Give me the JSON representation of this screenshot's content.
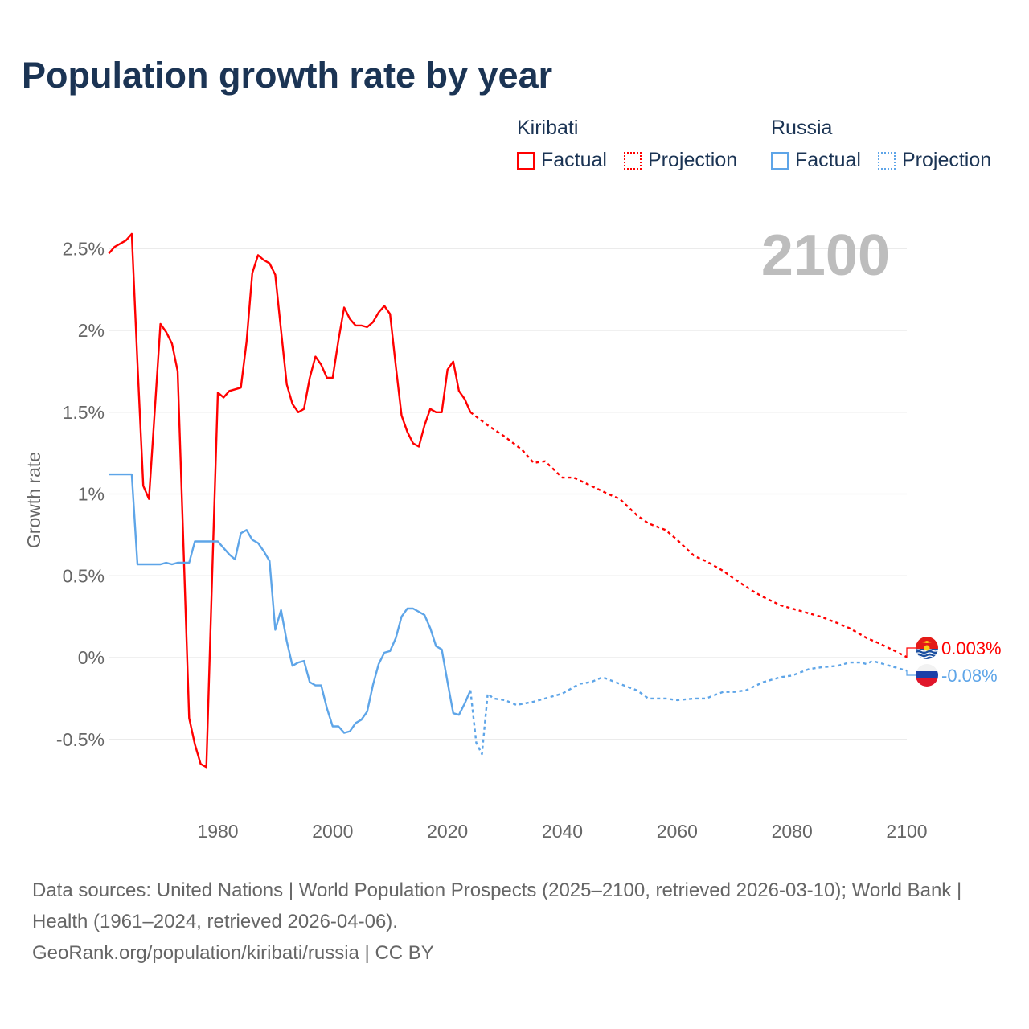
{
  "title": "Population growth rate by year",
  "legend": {
    "groups": [
      {
        "country": "Kiribati",
        "color": "#ff0000",
        "factual_label": "Factual",
        "projection_label": "Projection"
      },
      {
        "country": "Russia",
        "color": "#5ea5e8",
        "factual_label": "Factual",
        "projection_label": "Projection"
      }
    ]
  },
  "year_display": "2100",
  "footer": {
    "sources": "Data sources: United Nations | World Population Prospects (2025–2100, retrieved 2026-03-10); World Bank | Health (1961–2024, retrieved 2026-04-06).",
    "credit": "GeoRank.org/population/kiribati/russia | CC BY"
  },
  "chart_data": {
    "type": "line",
    "title": "Population growth rate by year",
    "xlabel": "",
    "ylabel": "Growth rate",
    "xlim": [
      1961,
      2100
    ],
    "ylim": [
      -0.85,
      2.75
    ],
    "x_ticks": [
      1980,
      2000,
      2020,
      2040,
      2060,
      2080,
      2100
    ],
    "y_ticks": [
      -0.5,
      0,
      0.5,
      1,
      1.5,
      2,
      2.5
    ],
    "y_tick_labels": [
      "-0.5%",
      "0%",
      "0.5%",
      "1%",
      "1.5%",
      "2%",
      "2.5%"
    ],
    "grid": true,
    "legend_position": "top-right",
    "series": [
      {
        "name": "Kiribati Factual",
        "color": "#ff0000",
        "dash": false,
        "x": [
          1961,
          1962,
          1963,
          1964,
          1965,
          1966,
          1967,
          1968,
          1969,
          1970,
          1971,
          1972,
          1973,
          1974,
          1975,
          1976,
          1977,
          1978,
          1979,
          1980,
          1981,
          1982,
          1983,
          1984,
          1985,
          1986,
          1987,
          1988,
          1989,
          1990,
          1991,
          1992,
          1993,
          1994,
          1995,
          1996,
          1997,
          1998,
          1999,
          2000,
          2001,
          2002,
          2003,
          2004,
          2005,
          2006,
          2007,
          2008,
          2009,
          2010,
          2011,
          2012,
          2013,
          2014,
          2015,
          2016,
          2017,
          2018,
          2019,
          2020,
          2021,
          2022,
          2023,
          2024
        ],
        "y": [
          2.47,
          2.51,
          2.53,
          2.55,
          2.59,
          1.8,
          1.05,
          0.97,
          1.5,
          2.04,
          1.99,
          1.92,
          1.75,
          0.7,
          -0.37,
          -0.53,
          -0.65,
          -0.67,
          0.5,
          1.62,
          1.59,
          1.63,
          1.64,
          1.65,
          1.93,
          2.35,
          2.46,
          2.43,
          2.41,
          2.34,
          2.0,
          1.67,
          1.55,
          1.5,
          1.52,
          1.71,
          1.84,
          1.79,
          1.71,
          1.71,
          1.94,
          2.14,
          2.07,
          2.03,
          2.03,
          2.02,
          2.05,
          2.11,
          2.15,
          2.1,
          1.78,
          1.48,
          1.38,
          1.31,
          1.29,
          1.42,
          1.52,
          1.5,
          1.5,
          1.76,
          1.81,
          1.63,
          1.58,
          1.5
        ]
      },
      {
        "name": "Kiribati Projection",
        "color": "#ff0000",
        "dash": true,
        "x": [
          2024,
          2027,
          2030,
          2033,
          2035,
          2037,
          2040,
          2042,
          2045,
          2048,
          2050,
          2053,
          2055,
          2058,
          2060,
          2063,
          2065,
          2068,
          2070,
          2073,
          2075,
          2078,
          2080,
          2083,
          2085,
          2088,
          2090,
          2093,
          2095,
          2098,
          2100
        ],
        "y": [
          1.5,
          1.42,
          1.35,
          1.27,
          1.19,
          1.2,
          1.1,
          1.1,
          1.05,
          1.0,
          0.97,
          0.87,
          0.82,
          0.78,
          0.72,
          0.62,
          0.59,
          0.53,
          0.48,
          0.41,
          0.37,
          0.32,
          0.3,
          0.27,
          0.25,
          0.21,
          0.18,
          0.12,
          0.09,
          0.04,
          0.003
        ]
      },
      {
        "name": "Russia Factual",
        "color": "#5ea5e8",
        "dash": false,
        "x": [
          1961,
          1962,
          1963,
          1964,
          1965,
          1966,
          1967,
          1968,
          1969,
          1970,
          1971,
          1972,
          1973,
          1974,
          1975,
          1976,
          1977,
          1978,
          1979,
          1980,
          1981,
          1982,
          1983,
          1984,
          1985,
          1986,
          1987,
          1988,
          1989,
          1990,
          1991,
          1992,
          1993,
          1994,
          1995,
          1996,
          1997,
          1998,
          1999,
          2000,
          2001,
          2002,
          2003,
          2004,
          2005,
          2006,
          2007,
          2008,
          2009,
          2010,
          2011,
          2012,
          2013,
          2014,
          2015,
          2016,
          2017,
          2018,
          2019,
          2020,
          2021,
          2022,
          2023,
          2024
        ],
        "y": [
          1.12,
          1.12,
          1.12,
          1.12,
          1.12,
          0.57,
          0.57,
          0.57,
          0.57,
          0.57,
          0.58,
          0.57,
          0.58,
          0.58,
          0.58,
          0.71,
          0.71,
          0.71,
          0.71,
          0.71,
          0.67,
          0.63,
          0.6,
          0.76,
          0.78,
          0.72,
          0.7,
          0.65,
          0.59,
          0.17,
          0.29,
          0.1,
          -0.05,
          -0.03,
          -0.02,
          -0.15,
          -0.17,
          -0.17,
          -0.31,
          -0.42,
          -0.42,
          -0.46,
          -0.45,
          -0.4,
          -0.38,
          -0.33,
          -0.17,
          -0.04,
          0.03,
          0.04,
          0.12,
          0.25,
          0.3,
          0.3,
          0.28,
          0.26,
          0.18,
          0.07,
          0.05,
          -0.15,
          -0.34,
          -0.35,
          -0.28,
          -0.2
        ]
      },
      {
        "name": "Russia Projection",
        "color": "#5ea5e8",
        "dash": true,
        "x": [
          2024,
          2025,
          2026,
          2027,
          2028,
          2030,
          2032,
          2035,
          2040,
          2043,
          2045,
          2047,
          2050,
          2053,
          2055,
          2058,
          2060,
          2063,
          2065,
          2068,
          2070,
          2072,
          2075,
          2078,
          2080,
          2083,
          2085,
          2088,
          2090,
          2092,
          2093,
          2094,
          2096,
          2098,
          2100
        ],
        "y": [
          -0.2,
          -0.52,
          -0.59,
          -0.22,
          -0.25,
          -0.26,
          -0.29,
          -0.27,
          -0.22,
          -0.16,
          -0.15,
          -0.12,
          -0.16,
          -0.2,
          -0.25,
          -0.25,
          -0.26,
          -0.25,
          -0.25,
          -0.21,
          -0.21,
          -0.2,
          -0.15,
          -0.12,
          -0.11,
          -0.07,
          -0.06,
          -0.05,
          -0.03,
          -0.03,
          -0.04,
          -0.02,
          -0.04,
          -0.06,
          -0.08
        ]
      }
    ],
    "end_labels": [
      {
        "country": "Kiribati",
        "value": 0.003,
        "label": "0.003%",
        "color": "#ff0000",
        "flag": "kiribati-flag"
      },
      {
        "country": "Russia",
        "value": -0.08,
        "label": "-0.08%",
        "color": "#5ea5e8",
        "flag": "russia-flag"
      }
    ]
  }
}
